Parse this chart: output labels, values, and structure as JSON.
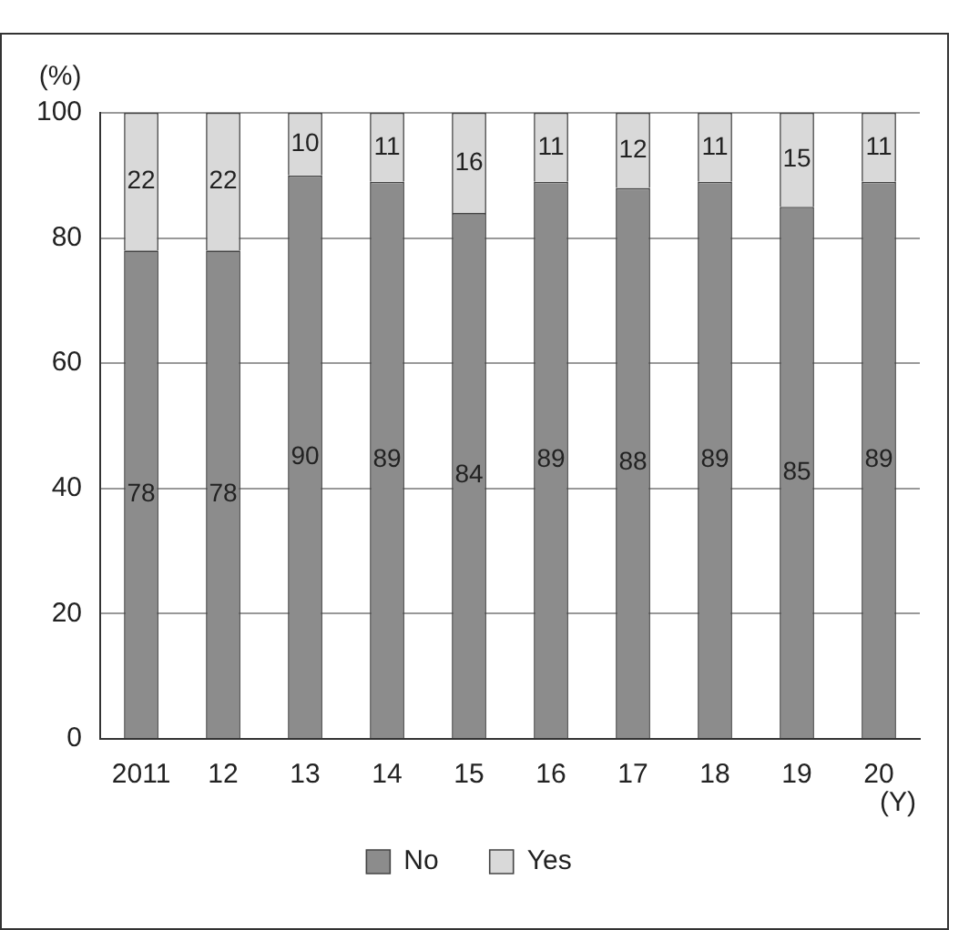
{
  "chart_data": {
    "type": "bar",
    "stacked": true,
    "xlabel": "(Y)",
    "ylabel": "(%)",
    "categories": [
      "2011",
      "12",
      "13",
      "14",
      "15",
      "16",
      "17",
      "18",
      "19",
      "20"
    ],
    "series": [
      {
        "name": "No",
        "color": "#8c8c8c",
        "values": [
          78,
          78,
          90,
          89,
          84,
          89,
          88,
          89,
          85,
          89
        ]
      },
      {
        "name": "Yes",
        "color": "#d9d9d9",
        "values": [
          22,
          22,
          10,
          11,
          16,
          11,
          12,
          11,
          15,
          11
        ]
      }
    ],
    "ylim": [
      0,
      100
    ],
    "yticks": [
      0,
      20,
      40,
      60,
      80,
      100
    ],
    "grid": "y",
    "legend": "bottom",
    "data_labels": true
  }
}
